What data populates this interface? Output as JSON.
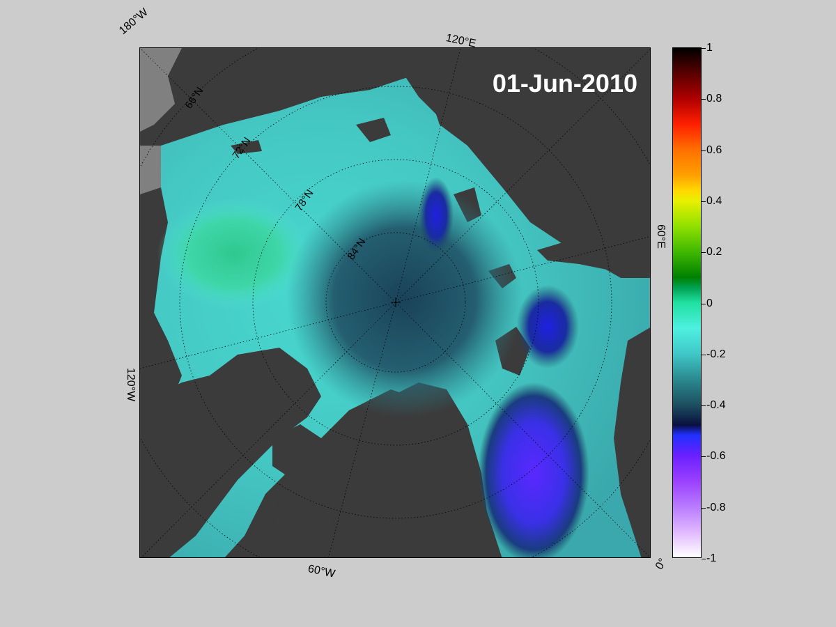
{
  "map": {
    "date": "01-Jun-2010",
    "longitude_labels": [
      "180°W",
      "120°E",
      "60°E",
      "0°",
      "60°W",
      "120°W"
    ],
    "latitude_labels": [
      "66°N",
      "72°N",
      "78°N",
      "84°N"
    ],
    "colors": {
      "background": "#cccccc",
      "land": "#3b3b3b",
      "grey_land": "#808080",
      "ocean_high": "#50e0d8",
      "ocean_mid": "#2a7a82",
      "ocean_low": "#1d4a5c",
      "anomaly_green": "#30c890",
      "anomaly_purple": "#5a30ff"
    }
  },
  "colorbar": {
    "ticks": [
      "1",
      "0.8",
      "0.6",
      "0.4",
      "0.2",
      "0",
      "-0.2",
      "-0.4",
      "-0.6",
      "-0.8",
      "-1"
    ],
    "range": [
      -1,
      1
    ]
  }
}
